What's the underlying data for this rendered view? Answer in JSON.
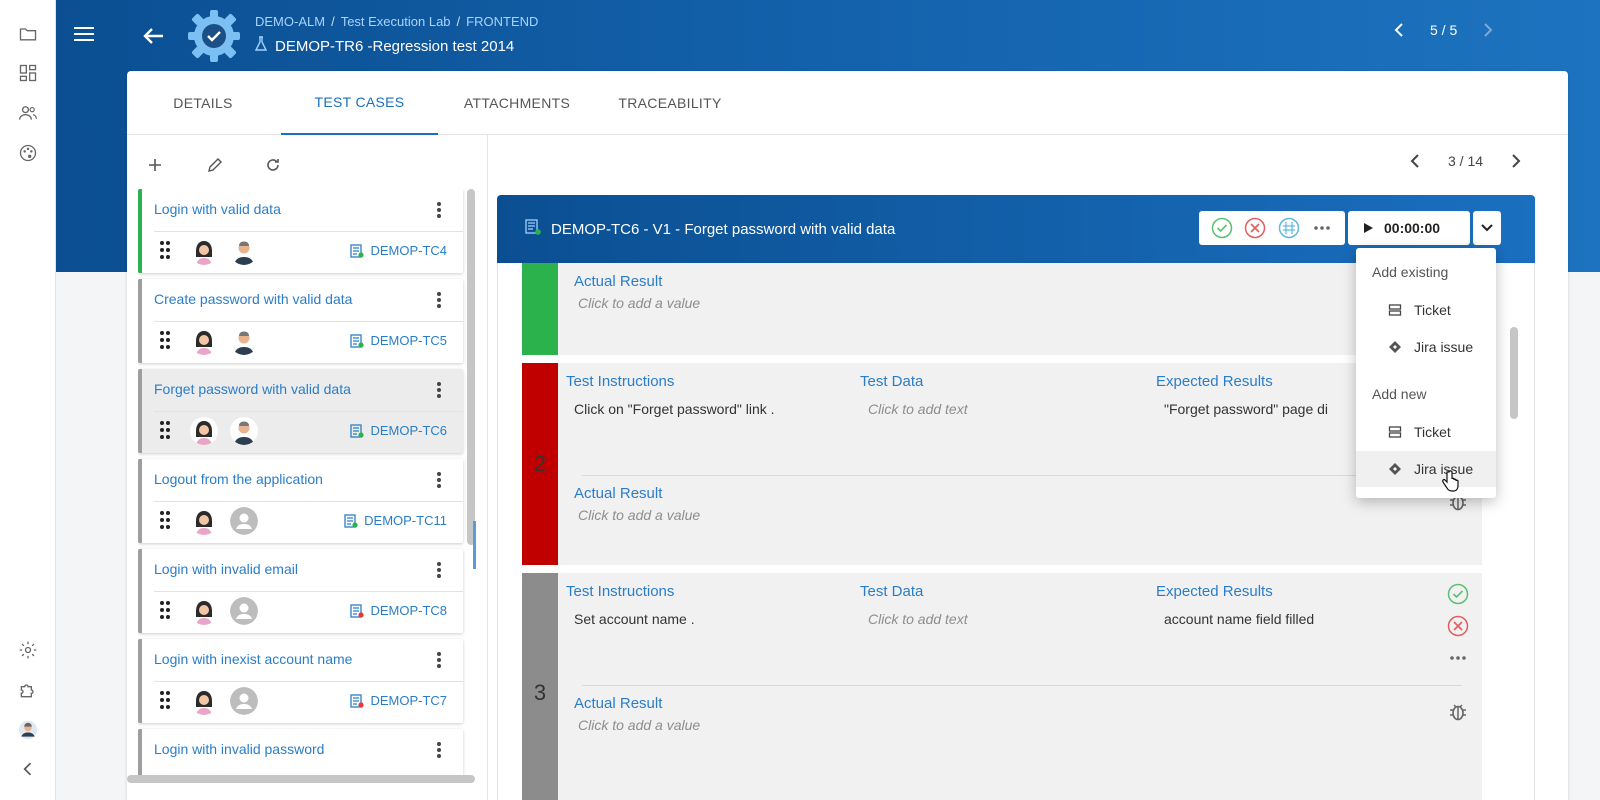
{
  "rail": {
    "items": [
      "folder-icon",
      "dashboard-icon",
      "people-icon",
      "palette-icon",
      "settings-icon",
      "puzzle-icon",
      "user-avatar",
      "collapse-icon"
    ]
  },
  "header": {
    "breadcrumb": [
      "DEMO-ALM",
      "Test Execution Lab",
      "FRONTEND"
    ],
    "title": "DEMOP-TR6 -Regression test 2014",
    "pager": "5 / 5"
  },
  "tabs": [
    {
      "label": "DETAILS"
    },
    {
      "label": "TEST CASES"
    },
    {
      "label": "ATTACHMENTS"
    },
    {
      "label": "TRACEABILITY"
    }
  ],
  "test_cases": [
    {
      "title": "Login with valid data",
      "id": "DEMOP-TC4",
      "status": "pass"
    },
    {
      "title": "Create password with valid data",
      "id": "DEMOP-TC5",
      "status": "none"
    },
    {
      "title": "Forget password with valid data",
      "id": "DEMOP-TC6",
      "status": "none"
    },
    {
      "title": "Logout from the application",
      "id": "DEMOP-TC11",
      "status": "none"
    },
    {
      "title": "Login with invalid email",
      "id": "DEMOP-TC8",
      "status": "none"
    },
    {
      "title": "Login with inexist account name",
      "id": "DEMOP-TC7",
      "status": "none"
    },
    {
      "title": "Login with invalid password",
      "id": "",
      "status": "none"
    }
  ],
  "detail": {
    "pager": "3 / 14",
    "title": "DEMOP-TC6 - V1 - Forget password with valid data",
    "timer": "00:00:00",
    "colors": {
      "pass": "#2bb24c",
      "fail": "#c00000",
      "none": "#8c8c8c"
    }
  },
  "steps": {
    "labels": {
      "actual": "Actual Result",
      "instructions": "Test Instructions",
      "data": "Test Data",
      "expected": "Expected Results"
    },
    "placeholders": {
      "value": "Click to add a value",
      "text": "Click to add text"
    },
    "step2": {
      "number": "2",
      "instructions": "Click on \"Forget password\" link .",
      "expected": "\"Forget password\" page di"
    },
    "step3": {
      "number": "3",
      "instructions": "Set account name .",
      "expected": "account name field filled"
    }
  },
  "menu": {
    "add_existing": "Add existing",
    "add_new": "Add new",
    "ticket": "Ticket",
    "jira": "Jira issue"
  }
}
